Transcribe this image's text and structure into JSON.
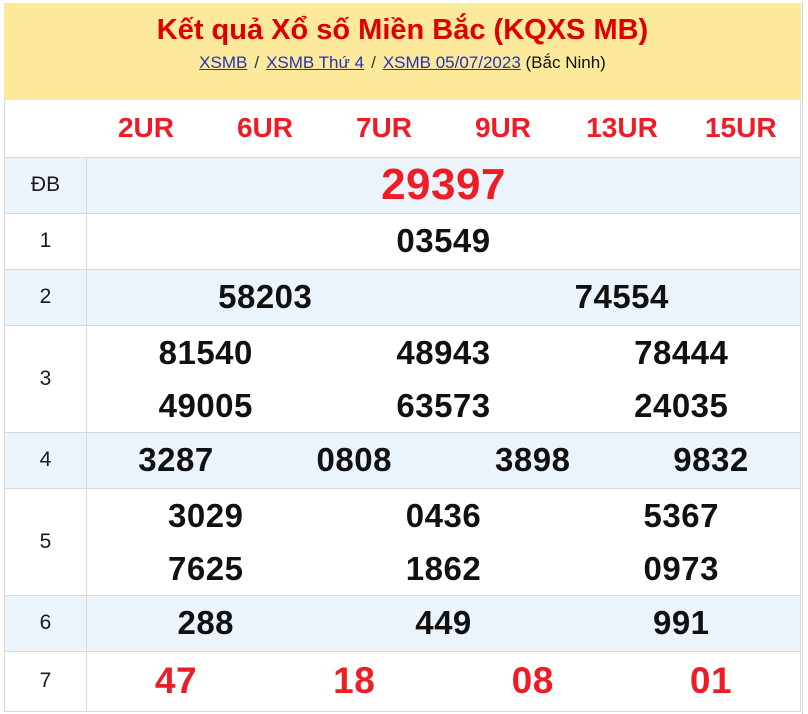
{
  "header": {
    "title": "Kết quả Xổ số Miền Bắc (KQXS MB)",
    "breadcrumb": [
      {
        "label": "XSMB"
      },
      {
        "label": "XSMB Thứ 4"
      },
      {
        "label": "XSMB 05/07/2023"
      }
    ],
    "separator": "/",
    "suffix": "(Bắc Ninh)"
  },
  "table": {
    "columns": [
      "2UR",
      "6UR",
      "7UR",
      "9UR",
      "13UR",
      "15UR"
    ],
    "rows": [
      {
        "label": "ĐB",
        "style": "special",
        "lines": [
          [
            "29397"
          ]
        ]
      },
      {
        "label": "1",
        "style": "normal",
        "lines": [
          [
            "03549"
          ]
        ]
      },
      {
        "label": "2",
        "style": "normal",
        "lines": [
          [
            "58203",
            "74554"
          ]
        ]
      },
      {
        "label": "3",
        "style": "normal",
        "lines": [
          [
            "81540",
            "48943",
            "78444"
          ],
          [
            "49005",
            "63573",
            "24035"
          ]
        ]
      },
      {
        "label": "4",
        "style": "normal",
        "lines": [
          [
            "3287",
            "0808",
            "3898",
            "9832"
          ]
        ]
      },
      {
        "label": "5",
        "style": "normal",
        "lines": [
          [
            "3029",
            "0436",
            "5367"
          ],
          [
            "7625",
            "1862",
            "0973"
          ]
        ]
      },
      {
        "label": "6",
        "style": "normal",
        "lines": [
          [
            "288",
            "449",
            "991"
          ]
        ]
      },
      {
        "label": "7",
        "style": "red",
        "lines": [
          [
            "47",
            "18",
            "08",
            "01"
          ]
        ]
      }
    ]
  },
  "colors": {
    "header_bg": "#FDE99C",
    "title_red": "#DE0000",
    "value_red": "#EE1C25",
    "link_blue": "#2233BB",
    "row_shade": "#EBF3FB",
    "border": "#D9D9D9"
  }
}
